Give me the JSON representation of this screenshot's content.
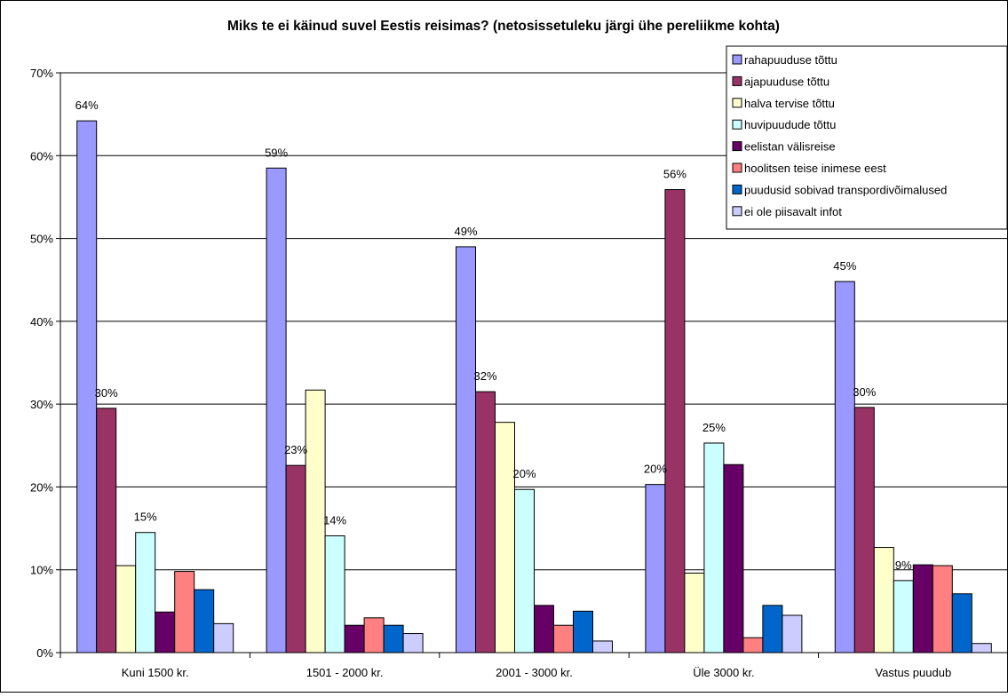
{
  "chart_data": {
    "type": "bar",
    "title": "Miks te ei käinud suvel Eestis reisimas? (netosissetuleku järgi ühe pereliikme kohta)",
    "xlabel": "",
    "ylabel": "",
    "ylim": [
      0,
      70
    ],
    "y_ticks": [
      "0%",
      "10%",
      "20%",
      "30%",
      "40%",
      "50%",
      "60%",
      "70%"
    ],
    "categories": [
      "Kuni 1500 kr.",
      "1501 - 2000 kr.",
      "2001 - 3000 kr.",
      "Üle 3000 kr.",
      "Vastus puudub"
    ],
    "grid": "horizontal",
    "legend_position": "top-right",
    "series": [
      {
        "name": "rahapuuduse tõttu",
        "color": "#9999ff",
        "values": [
          64.2,
          58.5,
          49.0,
          20.3,
          44.8
        ],
        "labels": [
          "64%",
          "59%",
          "49%",
          "20%",
          "45%"
        ]
      },
      {
        "name": "ajapuuduse tõttu",
        "color": "#993366",
        "values": [
          29.5,
          22.6,
          31.5,
          55.9,
          29.6
        ],
        "labels": [
          "30%",
          "23%",
          "32%",
          "56%",
          "30%"
        ]
      },
      {
        "name": "halva tervise tõttu",
        "color": "#ffffcc",
        "values": [
          10.5,
          31.7,
          27.8,
          9.6,
          12.7
        ],
        "labels": [
          "",
          "",
          "",
          "",
          ""
        ]
      },
      {
        "name": "huvipuudude tõttu",
        "color": "#ccffff",
        "values": [
          14.5,
          14.1,
          19.7,
          25.3,
          8.7
        ],
        "labels": [
          "15%",
          "14%",
          "20%",
          "25%",
          "9%"
        ]
      },
      {
        "name": "eelistan välisreise",
        "color": "#660066",
        "values": [
          4.9,
          3.3,
          5.7,
          22.7,
          10.6
        ],
        "labels": [
          "",
          "",
          "",
          "",
          ""
        ]
      },
      {
        "name": "hoolitsen teise inimese eest",
        "color": "#ff8080",
        "values": [
          9.8,
          4.2,
          3.3,
          1.8,
          10.5
        ],
        "labels": [
          "",
          "",
          "",
          "",
          ""
        ]
      },
      {
        "name": "puudusid sobivad transpordivõimalused",
        "color": "#0066cc",
        "values": [
          7.6,
          3.3,
          5.0,
          5.7,
          7.1
        ],
        "labels": [
          "",
          "",
          "",
          "",
          ""
        ]
      },
      {
        "name": "ei ole piisavalt infot",
        "color": "#ccccff",
        "values": [
          3.5,
          2.3,
          1.4,
          4.5,
          1.1
        ],
        "labels": [
          "",
          "",
          "",
          "",
          ""
        ]
      }
    ]
  }
}
